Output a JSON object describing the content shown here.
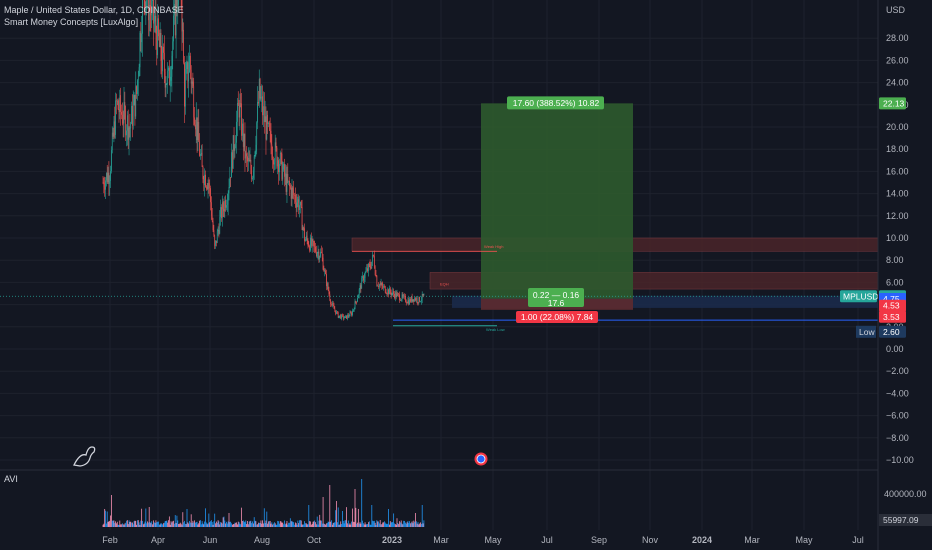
{
  "header": {
    "symbol_line": "Maple / United States Dollar, 1D, COINBASE",
    "indicator_line": "Smart Money Concepts [LuxAlgo]",
    "currency": "USD"
  },
  "sub_pane": {
    "label": "AVI"
  },
  "colors": {
    "background": "#131722",
    "up": "#26a69a",
    "down": "#ef5350",
    "target_zone": "#2e5a2e",
    "stop_zone": "#5a2a30",
    "supply_zone": "#4a2529",
    "demand_zone": "#1b2a4a"
  },
  "chart_data": {
    "type": "candlestick",
    "y_axis": {
      "ticks": [
        "28.00",
        "26.00",
        "24.00",
        "22.00",
        "20.00",
        "18.00",
        "16.00",
        "14.00",
        "12.00",
        "10.00",
        "8.00",
        "6.00",
        "4.00",
        "2.00",
        "0.00",
        "−2.00",
        "−4.00",
        "−6.00",
        "−8.00",
        "−10.00"
      ],
      "ylim": [
        -10.5,
        30
      ]
    },
    "x_axis": {
      "ticks": [
        "Feb",
        "Apr",
        "Jun",
        "Aug",
        "Oct",
        "2023",
        "Mar",
        "May",
        "Jul",
        "Sep",
        "Nov",
        "2024",
        "Mar",
        "May",
        "Jul"
      ],
      "bold_ticks": [
        "2023",
        "2024"
      ]
    },
    "price_path": [
      {
        "d": 0,
        "p": 15
      },
      {
        "d": 8,
        "p": 16
      },
      {
        "d": 16,
        "p": 22
      },
      {
        "d": 24,
        "p": 21
      },
      {
        "d": 32,
        "p": 20
      },
      {
        "d": 40,
        "p": 23
      },
      {
        "d": 48,
        "p": 33
      },
      {
        "d": 55,
        "p": 31
      },
      {
        "d": 62,
        "p": 29
      },
      {
        "d": 70,
        "p": 26
      },
      {
        "d": 78,
        "p": 24
      },
      {
        "d": 86,
        "p": 30
      },
      {
        "d": 92,
        "p": 35
      },
      {
        "d": 97,
        "p": 23
      },
      {
        "d": 103,
        "p": 26
      },
      {
        "d": 110,
        "p": 21
      },
      {
        "d": 118,
        "p": 16
      },
      {
        "d": 126,
        "p": 15
      },
      {
        "d": 133,
        "p": 9
      },
      {
        "d": 140,
        "p": 12
      },
      {
        "d": 148,
        "p": 14
      },
      {
        "d": 155,
        "p": 18
      },
      {
        "d": 162,
        "p": 22
      },
      {
        "d": 170,
        "p": 17
      },
      {
        "d": 178,
        "p": 16
      },
      {
        "d": 186,
        "p": 23
      },
      {
        "d": 194,
        "p": 20
      },
      {
        "d": 202,
        "p": 18
      },
      {
        "d": 210,
        "p": 17
      },
      {
        "d": 218,
        "p": 15
      },
      {
        "d": 226,
        "p": 14
      },
      {
        "d": 234,
        "p": 13
      },
      {
        "d": 240,
        "p": 10
      },
      {
        "d": 246,
        "p": 9.5
      },
      {
        "d": 252,
        "p": 9
      },
      {
        "d": 260,
        "p": 8.5
      },
      {
        "d": 266,
        "p": 6
      },
      {
        "d": 272,
        "p": 4
      },
      {
        "d": 280,
        "p": 3
      },
      {
        "d": 288,
        "p": 2.8
      },
      {
        "d": 296,
        "p": 3.2
      },
      {
        "d": 302,
        "p": 4.5
      },
      {
        "d": 310,
        "p": 6.5
      },
      {
        "d": 318,
        "p": 7.5
      },
      {
        "d": 322,
        "p": 8.3
      },
      {
        "d": 326,
        "p": 6
      },
      {
        "d": 332,
        "p": 5.6
      },
      {
        "d": 340,
        "p": 5.2
      },
      {
        "d": 348,
        "p": 4.9
      },
      {
        "d": 356,
        "p": 4.6
      },
      {
        "d": 364,
        "p": 4.3
      },
      {
        "d": 370,
        "p": 4.6
      },
      {
        "d": 376,
        "p": 4.4
      },
      {
        "d": 382,
        "p": 4.75
      }
    ],
    "date_range_days": [
      0,
      900
    ],
    "last_price": 4.75
  },
  "annotations": {
    "weak_high": "Weak High",
    "weak_low": "Weak Low",
    "strong_label": "EQH",
    "target_label": "17.60 (388.52%) 10.82",
    "risk_reward_label": "0.22 — 0.16",
    "qty_label": "17.6",
    "stop_label": "1.00 (22.08%) 7.84",
    "target_price": 22.13,
    "entry_price": 4.53,
    "stop_price": 3.53,
    "supply_top": 10.0,
    "supply_bottom": 8.8,
    "supply2_top": 6.9,
    "supply2_bottom": 5.4,
    "low_price": 2.6
  },
  "price_tags": [
    {
      "label": "22.13",
      "value": 22.13,
      "color": "#4caf50",
      "name": "target-price-tag"
    },
    {
      "label": "MPLUSD",
      "value": 4.75,
      "color": "#26a69a",
      "name": "symbol-name-tag",
      "wide": true
    },
    {
      "label": "4.75",
      "value": 4.75,
      "color": "#26a69a",
      "name": "last-price-tag"
    },
    {
      "label": "4.75",
      "value": 4.5,
      "color": "#2962ff",
      "name": "entry-price-tag"
    },
    {
      "label": "4.53",
      "value": 3.9,
      "color": "#f23645",
      "name": "entry2-price-tag"
    },
    {
      "label": "3.53",
      "value": 2.9,
      "color": "#f23645",
      "name": "stop-price-tag"
    },
    {
      "label": "2.60",
      "value": 1.55,
      "color": "#1e3a5f",
      "name": "low-price-tag",
      "prefix": "Low"
    }
  ],
  "volume_axis": {
    "tick_label": "400000.00",
    "last_volume": "55997.09"
  }
}
